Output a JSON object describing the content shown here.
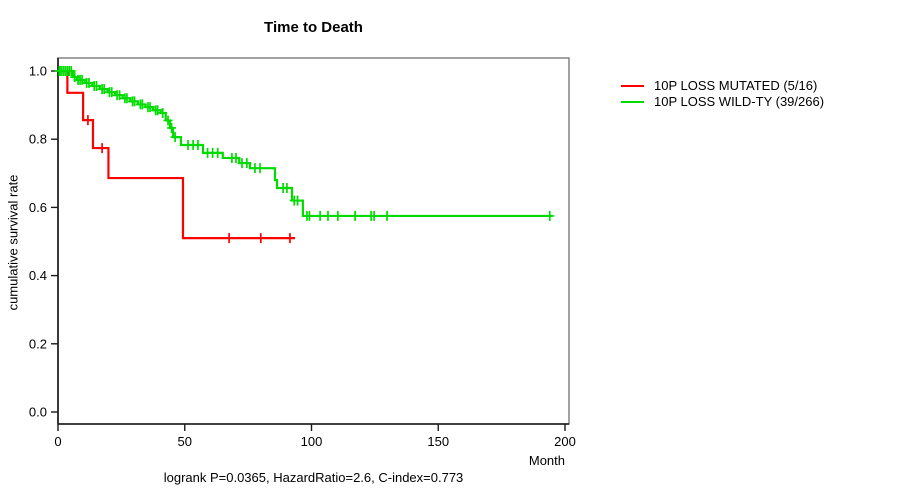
{
  "chart_data": {
    "type": "line",
    "subtype": "kaplan-meier-step",
    "title": "Time to Death",
    "xlabel": "Month",
    "ylabel": "cumulative survival rate",
    "footer": "logrank P=0.0365, HazardRatio=2.6, C-index=0.773",
    "xlim": [
      0,
      201.6
    ],
    "ylim": [
      0,
      1
    ],
    "grid": false,
    "legend_position": "right-outside",
    "x_ticks": [
      "0",
      "50",
      "100",
      "150",
      "200"
    ],
    "y_ticks": [
      "1.0",
      "0.8",
      "0.6",
      "0.4",
      "0.2",
      "0.0"
    ],
    "series": [
      {
        "name": "10P LOSS MUTATED (5/16)",
        "color": "#ff0000",
        "steps": [
          [
            0,
            1.0
          ],
          [
            3.7,
            0.936
          ],
          [
            9.9,
            0.856
          ],
          [
            13.8,
            0.774
          ],
          [
            19.9,
            0.686
          ],
          [
            49.3,
            0.51
          ]
        ],
        "end_month": 93.5,
        "censors": [
          [
            11.8,
            0.856
          ],
          [
            17.4,
            0.774
          ],
          [
            67.5,
            0.51
          ],
          [
            80,
            0.51
          ],
          [
            91.5,
            0.51
          ]
        ]
      },
      {
        "name": "10P LOSS WILD-TY (39/266)",
        "color": "#00dc00",
        "steps": [
          [
            0,
            1.0
          ],
          [
            5.9,
            0.982
          ],
          [
            7.5,
            0.974
          ],
          [
            10.5,
            0.965
          ],
          [
            13.5,
            0.956
          ],
          [
            16.5,
            0.947
          ],
          [
            19.5,
            0.938
          ],
          [
            22.5,
            0.929
          ],
          [
            25.5,
            0.92
          ],
          [
            28.5,
            0.911
          ],
          [
            31.5,
            0.902
          ],
          [
            34.5,
            0.894
          ],
          [
            37.5,
            0.885
          ],
          [
            40.5,
            0.877
          ],
          [
            42.5,
            0.855
          ],
          [
            44.2,
            0.833
          ],
          [
            45.4,
            0.806
          ],
          [
            48.5,
            0.783
          ],
          [
            57.2,
            0.76
          ],
          [
            65,
            0.745
          ],
          [
            71.5,
            0.73
          ],
          [
            75.7,
            0.715
          ],
          [
            85.6,
            0.68
          ],
          [
            86.4,
            0.657
          ],
          [
            92.3,
            0.62
          ],
          [
            96.6,
            0.575
          ]
        ],
        "end_month": 194.9,
        "censors": [
          [
            0.5,
            1
          ],
          [
            1.2,
            1
          ],
          [
            2,
            1
          ],
          [
            2.8,
            1
          ],
          [
            3.6,
            1
          ],
          [
            4.4,
            1
          ],
          [
            5.2,
            1
          ],
          [
            6.6,
            0.982
          ],
          [
            7.9,
            0.974
          ],
          [
            8.7,
            0.974
          ],
          [
            9.5,
            0.974
          ],
          [
            11.3,
            0.965
          ],
          [
            12.2,
            0.965
          ],
          [
            14.3,
            0.956
          ],
          [
            15.2,
            0.956
          ],
          [
            17.4,
            0.947
          ],
          [
            18.2,
            0.947
          ],
          [
            20.3,
            0.938
          ],
          [
            21.2,
            0.938
          ],
          [
            23.3,
            0.929
          ],
          [
            24.3,
            0.929
          ],
          [
            26.4,
            0.92
          ],
          [
            27.2,
            0.92
          ],
          [
            29.4,
            0.911
          ],
          [
            30.2,
            0.911
          ],
          [
            32.5,
            0.902
          ],
          [
            33.3,
            0.902
          ],
          [
            35.5,
            0.894
          ],
          [
            36.3,
            0.894
          ],
          [
            38.5,
            0.885
          ],
          [
            39.3,
            0.885
          ],
          [
            41.3,
            0.877
          ],
          [
            43.4,
            0.855
          ],
          [
            44.8,
            0.833
          ],
          [
            46.2,
            0.806
          ],
          [
            51.3,
            0.783
          ],
          [
            53.3,
            0.783
          ],
          [
            55.2,
            0.783
          ],
          [
            59,
            0.76
          ],
          [
            61,
            0.76
          ],
          [
            63,
            0.76
          ],
          [
            68.6,
            0.745
          ],
          [
            70.2,
            0.745
          ],
          [
            72.6,
            0.73
          ],
          [
            74.5,
            0.73
          ],
          [
            77.7,
            0.715
          ],
          [
            79.7,
            0.715
          ],
          [
            88.8,
            0.657
          ],
          [
            90.3,
            0.657
          ],
          [
            93.2,
            0.62
          ],
          [
            94.5,
            0.62
          ],
          [
            98.2,
            0.575
          ],
          [
            99.2,
            0.575
          ],
          [
            103.4,
            0.575
          ],
          [
            106.5,
            0.575
          ],
          [
            110.4,
            0.575
          ],
          [
            117.2,
            0.575
          ],
          [
            123.5,
            0.575
          ],
          [
            124.7,
            0.575
          ],
          [
            129.8,
            0.575
          ],
          [
            194,
            0.575
          ]
        ]
      }
    ]
  }
}
